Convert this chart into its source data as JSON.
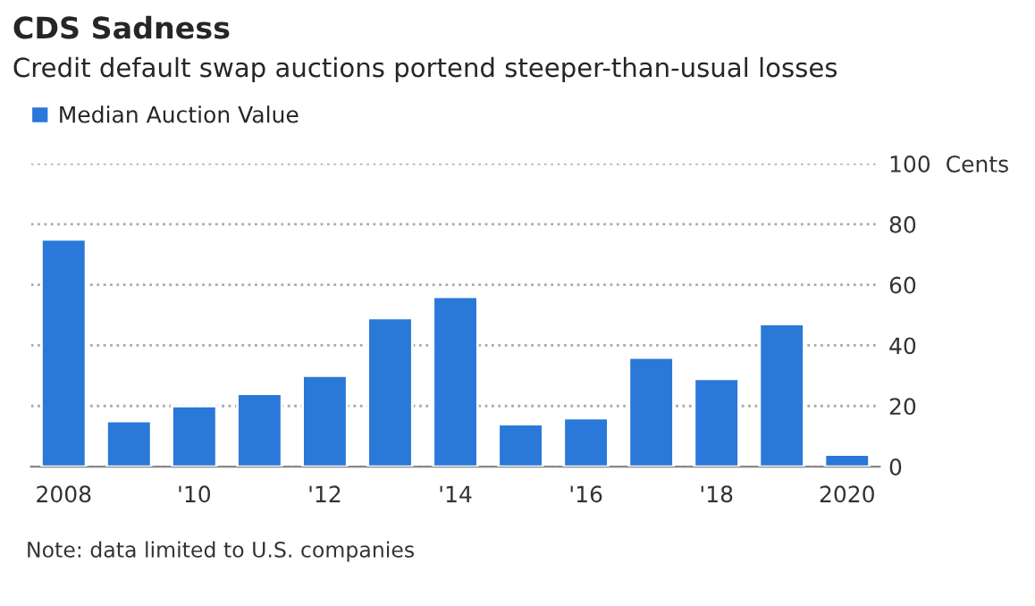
{
  "chart_data": {
    "type": "bar",
    "title": "CDS Sadness",
    "subtitle": "Credit default swap auctions portend steeper-than-usual losses",
    "categories": [
      "2008",
      null,
      "'10",
      null,
      "'12",
      null,
      "'14",
      null,
      "'16",
      null,
      "'18",
      null,
      "2020"
    ],
    "series": [
      {
        "name": "Median Auction Value",
        "color": "#2a78d8",
        "values": [
          75,
          15,
          20,
          24,
          30,
          49,
          56,
          14,
          16,
          36,
          29,
          47,
          4
        ]
      }
    ],
    "ylim": [
      0,
      100
    ],
    "yticks": [
      0,
      20,
      40,
      60,
      80,
      {
        "value": 100,
        "label": "100  Cents"
      }
    ],
    "grid": "y",
    "legend": "top left",
    "annotations": [
      "Note: data limited to U.S. companies"
    ]
  }
}
